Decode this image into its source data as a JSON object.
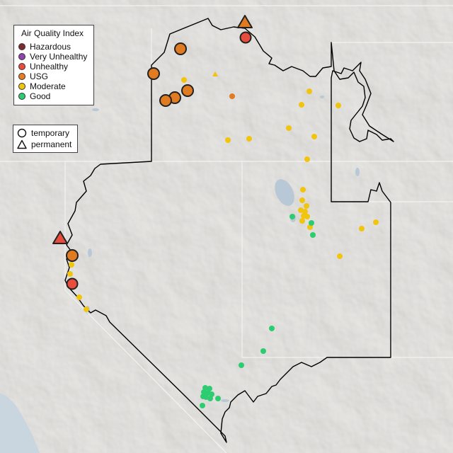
{
  "legend": {
    "title": "Air Quality Index",
    "categories": [
      {
        "label": "Hazardous",
        "color": "#7e2a2f"
      },
      {
        "label": "Very Unhealthy",
        "color": "#8e44ad"
      },
      {
        "label": "Unhealthy",
        "color": "#e74c3c"
      },
      {
        "label": "USG",
        "color": "#e67e22"
      },
      {
        "label": "Moderate",
        "color": "#f1c40f"
      },
      {
        "label": "Good",
        "color": "#2ecc71"
      }
    ]
  },
  "monitor_legend": {
    "temporary_label": "temporary",
    "permanent_label": "permanent"
  }
}
